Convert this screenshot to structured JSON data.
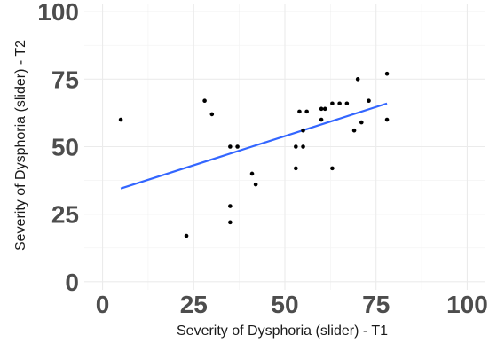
{
  "chart_data": {
    "type": "scatter",
    "xlabel": "Severity of Dysphoria (slider) - T1",
    "ylabel": "Severity of Dysphoria (slider) - T2",
    "xlim": [
      -5,
      105
    ],
    "ylim": [
      -3,
      103
    ],
    "xticks": [
      0,
      25,
      50,
      75,
      100
    ],
    "yticks": [
      0,
      25,
      50,
      75,
      100
    ],
    "xtick_labels": [
      "0",
      "25",
      "50",
      "75",
      "100"
    ],
    "ytick_labels": [
      "0",
      "25",
      "50",
      "75",
      "100"
    ],
    "grid": true,
    "point_color": "#000000",
    "points": [
      {
        "x": 5,
        "y": 60
      },
      {
        "x": 23,
        "y": 17
      },
      {
        "x": 28,
        "y": 67
      },
      {
        "x": 30,
        "y": 62
      },
      {
        "x": 35,
        "y": 28
      },
      {
        "x": 35,
        "y": 22
      },
      {
        "x": 35,
        "y": 50
      },
      {
        "x": 37,
        "y": 50
      },
      {
        "x": 41,
        "y": 40
      },
      {
        "x": 42,
        "y": 36
      },
      {
        "x": 53,
        "y": 50
      },
      {
        "x": 53,
        "y": 42
      },
      {
        "x": 54,
        "y": 63
      },
      {
        "x": 55,
        "y": 50
      },
      {
        "x": 55,
        "y": 56
      },
      {
        "x": 56,
        "y": 63
      },
      {
        "x": 60,
        "y": 64
      },
      {
        "x": 60,
        "y": 60
      },
      {
        "x": 61,
        "y": 64
      },
      {
        "x": 63,
        "y": 66
      },
      {
        "x": 63,
        "y": 42
      },
      {
        "x": 65,
        "y": 66
      },
      {
        "x": 67,
        "y": 66
      },
      {
        "x": 69,
        "y": 56
      },
      {
        "x": 70,
        "y": 75
      },
      {
        "x": 71,
        "y": 59
      },
      {
        "x": 73,
        "y": 67
      },
      {
        "x": 78,
        "y": 77
      },
      {
        "x": 78,
        "y": 60
      }
    ],
    "trend_line": {
      "x": [
        5,
        78
      ],
      "y": [
        34.5,
        66
      ],
      "color": "#3366ff"
    }
  }
}
